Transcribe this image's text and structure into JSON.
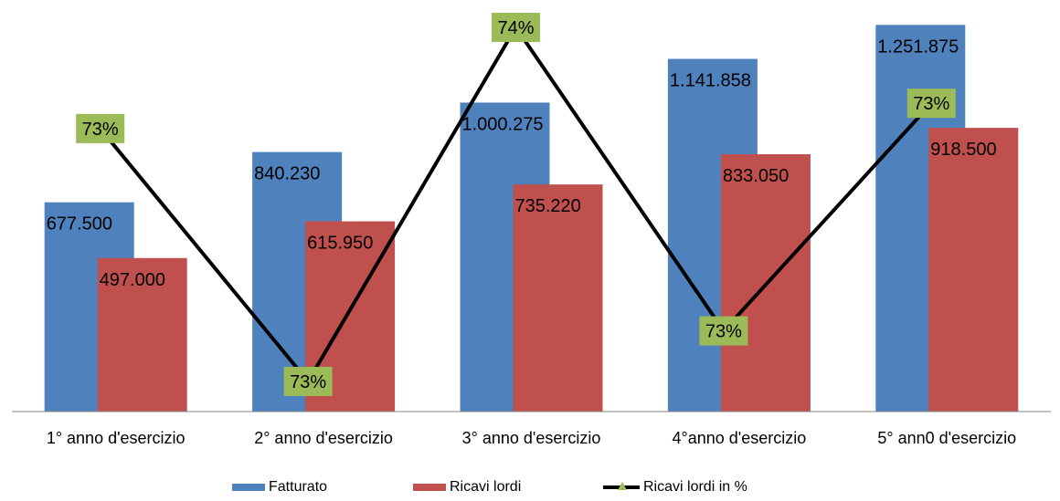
{
  "chart_data": {
    "type": "bar",
    "categories": [
      "1° anno d'esercizio",
      "2° anno d'esercizio",
      "3° anno d'esercizio",
      "4°anno d'esercizio",
      "5° ann0 d'esercizio"
    ],
    "series": [
      {
        "name": "Fatturato",
        "kind": "bar",
        "color": "#4f81bd",
        "values": [
          677500,
          840230,
          1000275,
          1141858,
          1251875
        ],
        "labels": [
          "677.500",
          "840.230",
          "1.000.275",
          "1.141.858",
          "1.251.875"
        ]
      },
      {
        "name": "Ricavi lordi",
        "kind": "bar",
        "color": "#c0504d",
        "values": [
          497000,
          615950,
          735220,
          833050,
          918500
        ],
        "labels": [
          "497.000",
          "615.950",
          "735.220",
          "833.050",
          "918.500"
        ]
      },
      {
        "name": "Ricavi lordi in %",
        "kind": "line",
        "color": "#000000",
        "marker_color": "#9bbb59",
        "values": [
          0.733,
          0.728,
          0.735,
          0.729,
          0.7335
        ],
        "labels": [
          "73%",
          "73%",
          "74%",
          "73%",
          "73%"
        ]
      }
    ],
    "ylim_bars": [
      0,
      1300000
    ],
    "legend_position": "bottom",
    "grid": false
  }
}
